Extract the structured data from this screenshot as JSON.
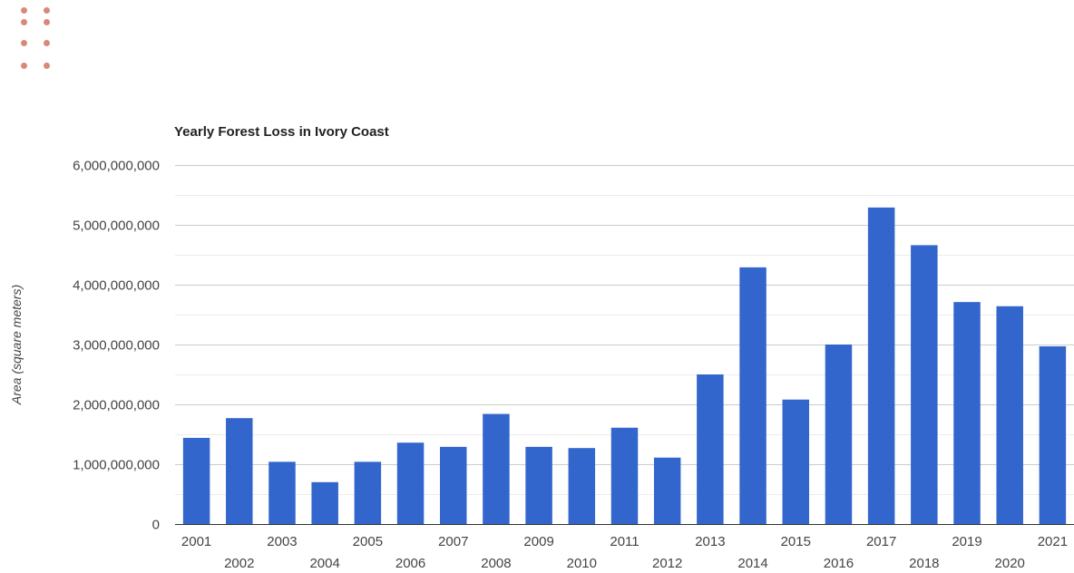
{
  "colors": {
    "bar": "#3366cc",
    "gridline": "#cccccc",
    "minor_gridline": "#ececec",
    "axis_text": "#444444",
    "title_text": "#222222",
    "menu_dots": "#d9897a"
  },
  "menu": {
    "icon": "drag-handle-dots-icon"
  },
  "chart_data": {
    "type": "bar",
    "title": "Yearly Forest Loss in Ivory Coast",
    "xlabel": "",
    "ylabel": "Area (square meters)",
    "categories": [
      "2001",
      "2002",
      "2003",
      "2004",
      "2005",
      "2006",
      "2007",
      "2008",
      "2009",
      "2010",
      "2011",
      "2012",
      "2013",
      "2014",
      "2015",
      "2016",
      "2017",
      "2018",
      "2019",
      "2020",
      "2021"
    ],
    "series": [
      {
        "values": [
          1440000000,
          1770000000,
          1040000000,
          700000000,
          1040000000,
          1360000000,
          1290000000,
          1840000000,
          1290000000,
          1270000000,
          1610000000,
          1110000000,
          2500000000,
          4290000000,
          2080000000,
          3000000000,
          5290000000,
          4660000000,
          3710000000,
          3640000000,
          2970000000
        ]
      }
    ],
    "ylim": [
      0,
      6000000000
    ],
    "yticks": [
      "0",
      "1,000,000,000",
      "2,000,000,000",
      "3,000,000,000",
      "4,000,000,000",
      "5,000,000,000",
      "6,000,000,000"
    ],
    "grid": true,
    "legend": "none"
  }
}
